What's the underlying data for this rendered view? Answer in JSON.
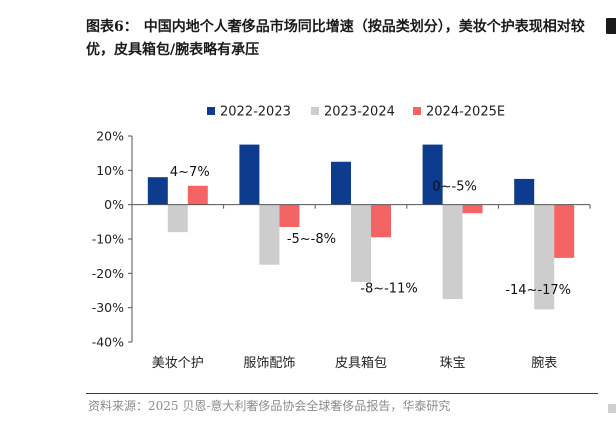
{
  "figure": {
    "label": "图表6：",
    "title": "中国内地个人奢侈品市场同比增速（按品类划分），美妆个护表现相对较优，皮具箱包/腕表略有承压"
  },
  "source": "资料来源：2025 贝恩-意大利奢侈品协会全球奢侈品报告，华泰研究",
  "chart_data": {
    "type": "bar",
    "title": "中国内地个人奢侈品市场同比增速（按品类划分）",
    "xlabel": "",
    "ylabel": "",
    "categories": [
      "美妆个护",
      "服饰配饰",
      "皮具箱包",
      "珠宝",
      "腕表"
    ],
    "series": [
      {
        "name": "2022-2023",
        "color": "#0d3b8e",
        "values": [
          8,
          17.5,
          12.5,
          17.5,
          7.5
        ]
      },
      {
        "name": "2023-2024",
        "color": "#cdcdcd",
        "values": [
          -8,
          -17.5,
          -22.5,
          -27.5,
          -30.5
        ]
      },
      {
        "name": "2024-2025E",
        "color": "#f46464",
        "values": [
          5.5,
          -6.5,
          -9.5,
          -2.5,
          -15.5
        ]
      }
    ],
    "ylim": [
      -40,
      20
    ],
    "yticks": [
      20,
      10,
      0,
      -10,
      -20,
      -30,
      -40
    ],
    "ytick_format": "percent",
    "annotations": [
      {
        "category": "美妆个护",
        "text": "4~7%"
      },
      {
        "category": "服饰配饰",
        "text": "-5~-8%"
      },
      {
        "category": "皮具箱包",
        "text": "-8~-11%"
      },
      {
        "category": "珠宝",
        "text": "0~-5%"
      },
      {
        "category": "腕表",
        "text": "-14~-17%"
      }
    ],
    "legend_position": "top-center",
    "grid": false
  }
}
